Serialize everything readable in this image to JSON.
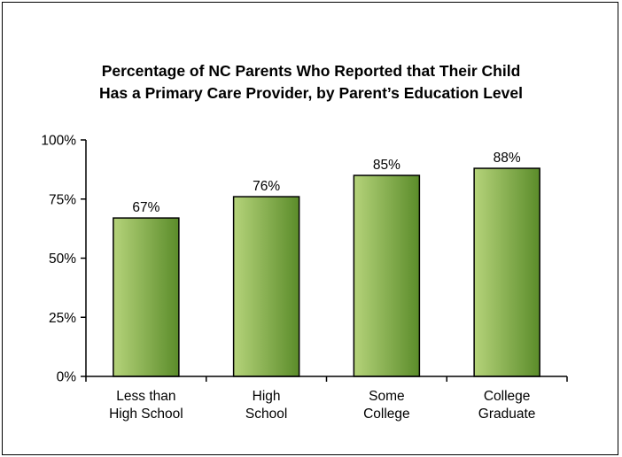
{
  "chart_data": {
    "type": "bar",
    "title_lines": [
      "Percentage of NC Parents Who Reported that Their Child",
      "Has a Primary Care Provider, by Parent’s Education Level"
    ],
    "categories": [
      [
        "Less than",
        "High School"
      ],
      [
        "High",
        "School"
      ],
      [
        "Some",
        "College"
      ],
      [
        "College",
        "Graduate"
      ]
    ],
    "values": [
      67,
      76,
      85,
      88
    ],
    "data_labels": [
      "67%",
      "76%",
      "85%",
      "88%"
    ],
    "ylim": [
      0,
      100
    ],
    "yticks": [
      0,
      25,
      50,
      75,
      100
    ],
    "ytick_labels": [
      "0%",
      "25%",
      "50%",
      "75%",
      "100%"
    ],
    "xlabel": "",
    "ylabel": "",
    "grid": false,
    "legend": "none",
    "colors": {
      "bar_light": "#b5d37a",
      "bar_dark": "#5b8c2a",
      "bar_edge": "#000000",
      "axis": "#000000"
    }
  }
}
